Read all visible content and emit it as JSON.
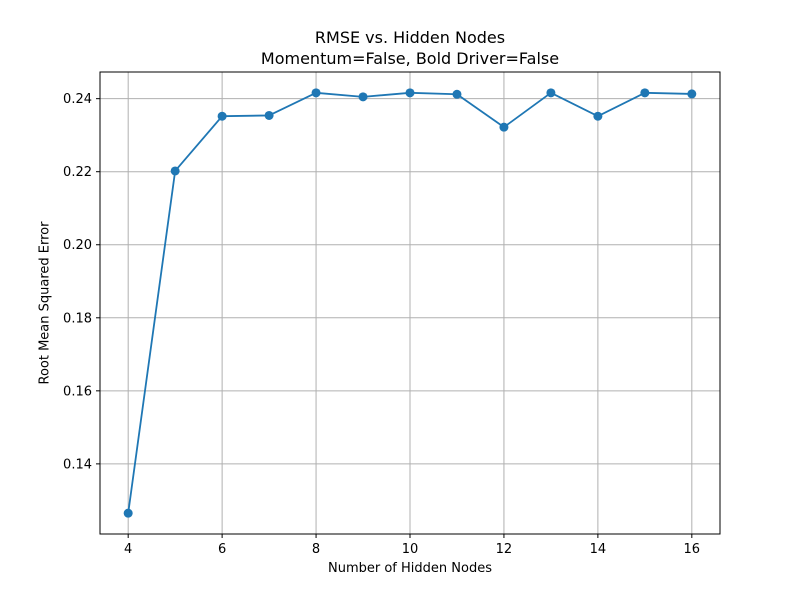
{
  "chart_data": {
    "type": "line",
    "title": "RMSE vs. Hidden Nodes",
    "subtitle": "Momentum=False, Bold Driver=False",
    "xlabel": "Number of Hidden Nodes",
    "ylabel": "Root Mean Squared Error",
    "x": [
      4,
      5,
      6,
      7,
      8,
      9,
      10,
      11,
      12,
      13,
      14,
      15,
      16
    ],
    "series": [
      {
        "values": [
          0.1265,
          0.2202,
          0.2352,
          0.2354,
          0.2416,
          0.2405,
          0.2416,
          0.2412,
          0.2322,
          0.2416,
          0.2352,
          0.2416,
          0.2413
        ],
        "color": "#1f77b4",
        "marker": "circle"
      }
    ],
    "xticks": [
      4,
      6,
      8,
      10,
      12,
      14,
      16
    ],
    "yticks": [
      0.14,
      0.16,
      0.18,
      0.2,
      0.22,
      0.24
    ],
    "xtick_labels": [
      "4",
      "6",
      "8",
      "10",
      "12",
      "14",
      "16"
    ],
    "ytick_labels": [
      "0.14",
      "0.16",
      "0.18",
      "0.20",
      "0.22",
      "0.24"
    ],
    "xlim": [
      3.4,
      16.6
    ],
    "ylim": [
      0.1208,
      0.2473
    ],
    "grid": true,
    "legend": "none"
  }
}
